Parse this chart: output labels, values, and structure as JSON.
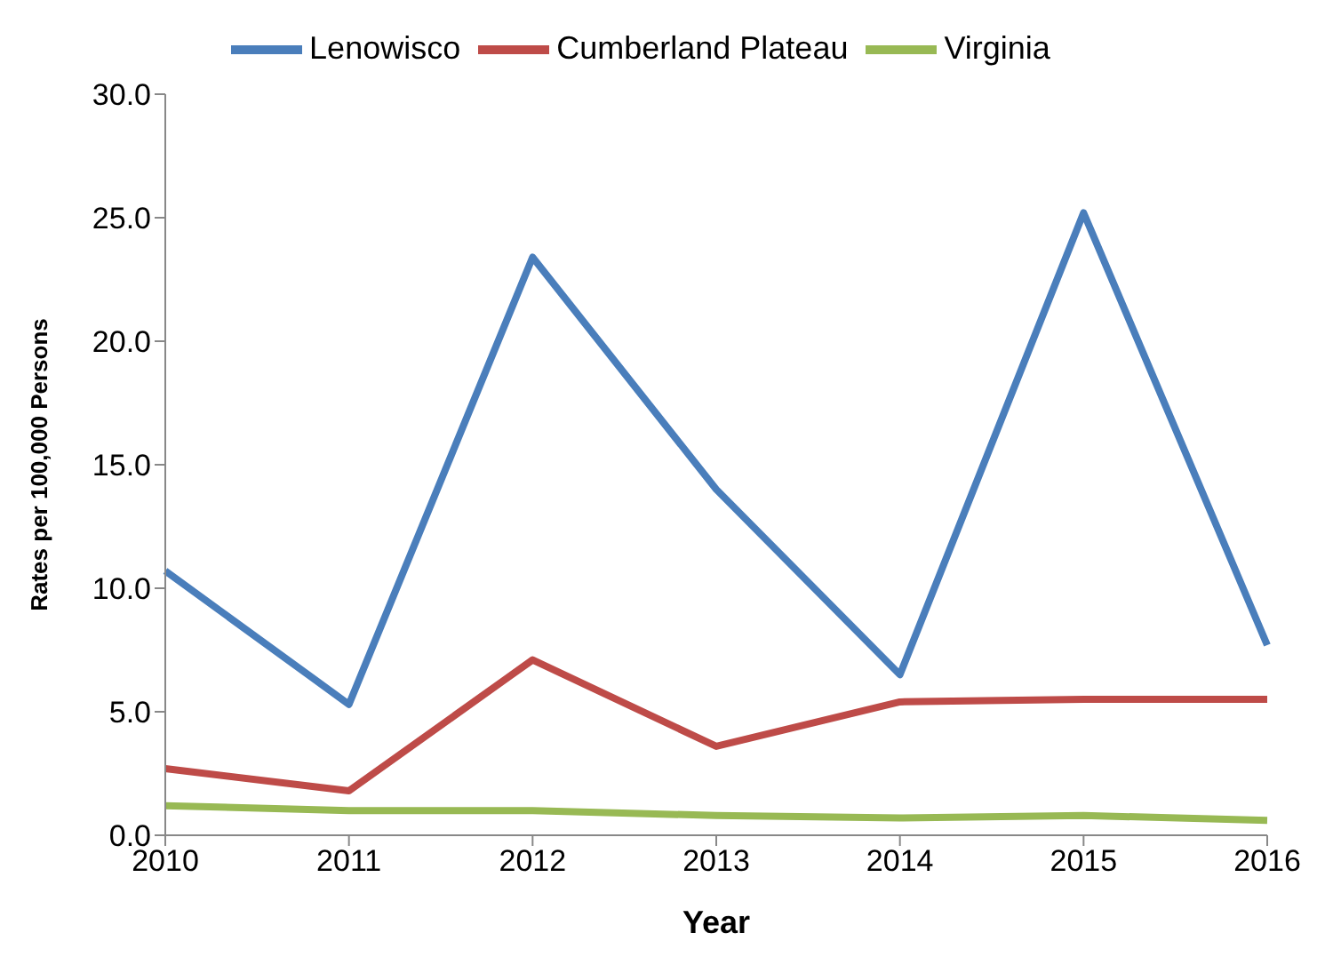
{
  "chart_data": {
    "type": "line",
    "xlabel": "Year",
    "ylabel": "Rates per 100,000 Persons",
    "categories": [
      "2010",
      "2011",
      "2012",
      "2013",
      "2014",
      "2015",
      "2016"
    ],
    "series": [
      {
        "name": "Lenowisco",
        "color": "#4a7ebb",
        "values": [
          10.7,
          5.3,
          23.4,
          14.0,
          6.5,
          25.2,
          7.7
        ]
      },
      {
        "name": "Cumberland Plateau",
        "color": "#be4b48",
        "values": [
          2.7,
          1.8,
          7.1,
          3.6,
          5.4,
          5.5,
          5.5
        ]
      },
      {
        "name": "Virginia",
        "color": "#98b954",
        "values": [
          1.2,
          1.0,
          1.0,
          0.8,
          0.7,
          0.8,
          0.6
        ]
      }
    ],
    "ylim": [
      0,
      30
    ],
    "yticks": [
      {
        "value": 0,
        "label": "0.0"
      },
      {
        "value": 5,
        "label": "5.0"
      },
      {
        "value": 10,
        "label": "10.0"
      },
      {
        "value": 15,
        "label": "15.0"
      },
      {
        "value": 20,
        "label": "20.0"
      },
      {
        "value": 25,
        "label": "25.0"
      },
      {
        "value": 30,
        "label": "30.0"
      }
    ],
    "grid": false,
    "legend": "top",
    "marker": "none",
    "line_style": "solid"
  }
}
